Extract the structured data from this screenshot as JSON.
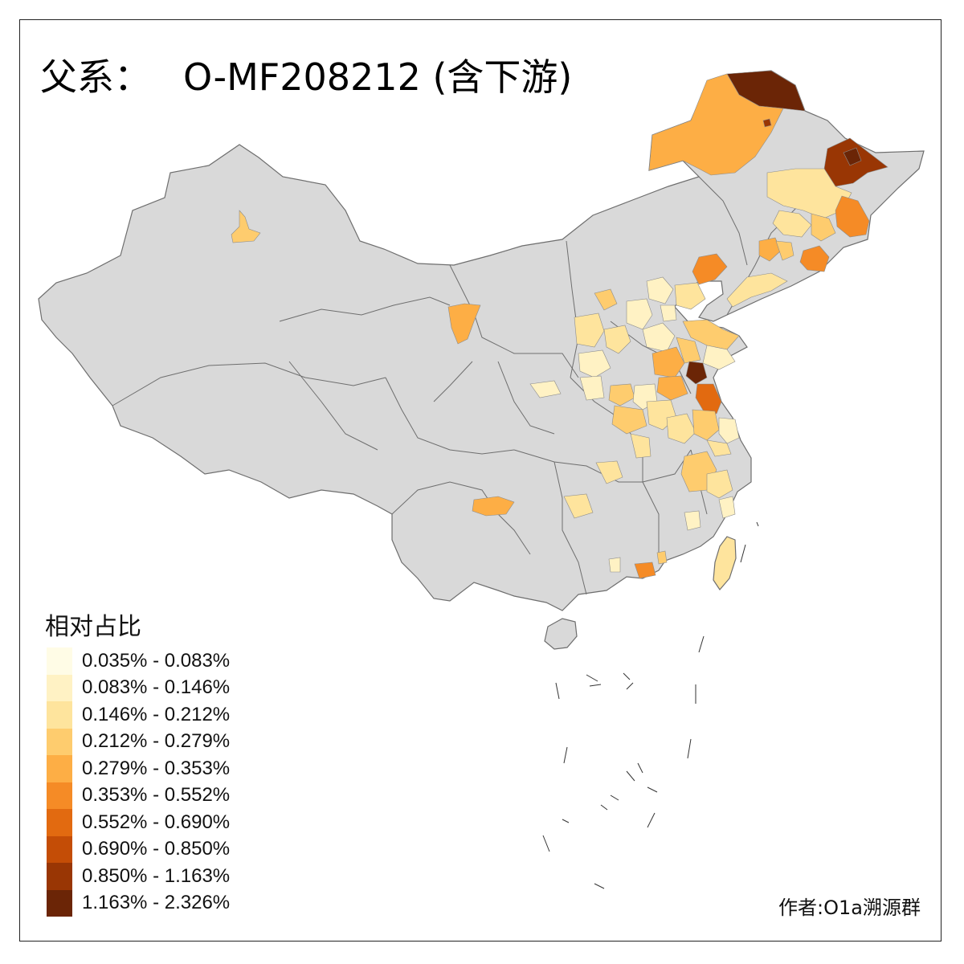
{
  "title": {
    "prefix": "父系：",
    "haplogroup": "O-MF208212 (含下游)"
  },
  "legend": {
    "title": "相对占比",
    "items": [
      {
        "label": "0.035% - 0.083%",
        "color": "#FFFCE6"
      },
      {
        "label": "0.083% - 0.146%",
        "color": "#FFF2C4"
      },
      {
        "label": "0.146% - 0.212%",
        "color": "#FEE49D"
      },
      {
        "label": "0.212% - 0.279%",
        "color": "#FECC6E"
      },
      {
        "label": "0.279% - 0.353%",
        "color": "#FDAE45"
      },
      {
        "label": "0.353% - 0.552%",
        "color": "#F58B26"
      },
      {
        "label": "0.552% - 0.690%",
        "color": "#E26A10"
      },
      {
        "label": "0.690% - 0.850%",
        "color": "#C44D06"
      },
      {
        "label": "0.850% - 1.163%",
        "color": "#993604"
      },
      {
        "label": "1.163% - 2.326%",
        "color": "#6B2506"
      }
    ]
  },
  "credit": "作者:O1a溯源群",
  "colors": {
    "land": "#D9D9D9",
    "border": "#6E6E6E",
    "frame": "#222222"
  }
}
